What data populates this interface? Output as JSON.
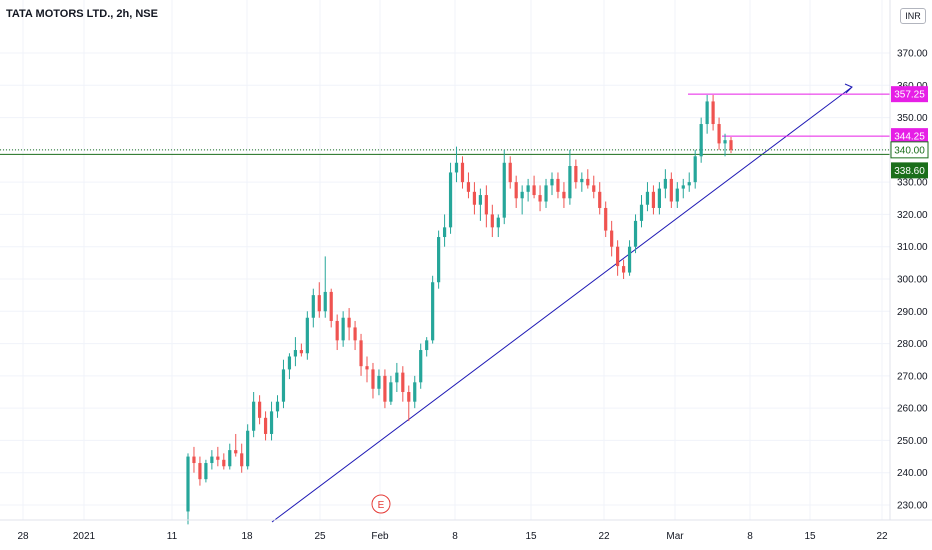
{
  "header": {
    "title": "TATA MOTORS LTD., 2h, NSE",
    "currency": "INR"
  },
  "colors": {
    "up": "#26a69a",
    "down": "#ef5350",
    "support": "#1b6e1b",
    "target": "#e61ee6",
    "trend": "#1f1ab5",
    "earnings": "#e53935"
  },
  "chart_data": {
    "type": "candlestick",
    "y_range": [
      223,
      380
    ],
    "y_ticks": [
      230,
      240,
      250,
      260,
      270,
      280,
      290,
      300,
      310,
      320,
      330,
      340,
      350,
      360,
      370
    ],
    "y_tick_labels": [
      "230.00",
      "240.00",
      "250.00",
      "260.00",
      "270.00",
      "280.00",
      "290.00",
      "300.00",
      "310.00",
      "320.00",
      "330.00",
      "340.00",
      "350.00",
      "360.00",
      "370.00"
    ],
    "x_labels": [
      "28",
      "2021",
      "11",
      "18",
      "25",
      "Feb",
      "8",
      "15",
      "22",
      "Mar",
      "8",
      "15",
      "22"
    ],
    "support_level": 338.6,
    "support_label": "338.60",
    "last_price": 340.0,
    "last_price_label": "340.00",
    "target_levels": [
      {
        "value": 357.25,
        "label": "357.25"
      },
      {
        "value": 344.25,
        "label": "344.25"
      }
    ],
    "earnings_marker": "E",
    "candles": [
      [
        228,
        246,
        224,
        245
      ],
      [
        245,
        248,
        240,
        243
      ],
      [
        243,
        245,
        236,
        238
      ],
      [
        238,
        244,
        237,
        243
      ],
      [
        243,
        247,
        241,
        245
      ],
      [
        245,
        248,
        242,
        244
      ],
      [
        244,
        246,
        241,
        242
      ],
      [
        242,
        249,
        241,
        247
      ],
      [
        247,
        252,
        245,
        246
      ],
      [
        246,
        249,
        240,
        242
      ],
      [
        242,
        255,
        241,
        253
      ],
      [
        253,
        265,
        251,
        262
      ],
      [
        262,
        264,
        255,
        257
      ],
      [
        257,
        259,
        250,
        252
      ],
      [
        252,
        262,
        250,
        259
      ],
      [
        259,
        264,
        257,
        262
      ],
      [
        262,
        275,
        260,
        272
      ],
      [
        272,
        277,
        269,
        276
      ],
      [
        276,
        282,
        273,
        278
      ],
      [
        278,
        280,
        276,
        277
      ],
      [
        277,
        290,
        275,
        288
      ],
      [
        288,
        297,
        285,
        295
      ],
      [
        295,
        299,
        288,
        290
      ],
      [
        290,
        307,
        288,
        296
      ],
      [
        296,
        297,
        285,
        287
      ],
      [
        287,
        289,
        278,
        281
      ],
      [
        281,
        290,
        279,
        288
      ],
      [
        288,
        291,
        281,
        285
      ],
      [
        285,
        287,
        278,
        281
      ],
      [
        281,
        283,
        270,
        273
      ],
      [
        273,
        276,
        268,
        272
      ],
      [
        272,
        274,
        263,
        266
      ],
      [
        266,
        272,
        264,
        270
      ],
      [
        270,
        272,
        260,
        262
      ],
      [
        262,
        270,
        261,
        268
      ],
      [
        268,
        274,
        265,
        271
      ],
      [
        271,
        273,
        262,
        265
      ],
      [
        265,
        267,
        256,
        262
      ],
      [
        262,
        270,
        260,
        268
      ],
      [
        268,
        280,
        266,
        278
      ],
      [
        278,
        282,
        276,
        281
      ],
      [
        281,
        301,
        280,
        299
      ],
      [
        299,
        315,
        297,
        313
      ],
      [
        313,
        320,
        310,
        316
      ],
      [
        316,
        336,
        314,
        333
      ],
      [
        333,
        341,
        330,
        336
      ],
      [
        336,
        338,
        328,
        330
      ],
      [
        330,
        333,
        325,
        327
      ],
      [
        327,
        330,
        320,
        323
      ],
      [
        323,
        328,
        318,
        326
      ],
      [
        326,
        329,
        316,
        320
      ],
      [
        320,
        323,
        313,
        316
      ],
      [
        316,
        320,
        313,
        319
      ],
      [
        319,
        340,
        317,
        336
      ],
      [
        336,
        338,
        328,
        330
      ],
      [
        330,
        332,
        322,
        325
      ],
      [
        325,
        329,
        320,
        327
      ],
      [
        327,
        331,
        324,
        329
      ],
      [
        329,
        332,
        325,
        326
      ],
      [
        326,
        329,
        321,
        324
      ],
      [
        324,
        331,
        322,
        329
      ],
      [
        329,
        333,
        326,
        331
      ],
      [
        331,
        333,
        325,
        327
      ],
      [
        327,
        330,
        322,
        325
      ],
      [
        325,
        340,
        323,
        335
      ],
      [
        335,
        337,
        328,
        330
      ],
      [
        330,
        333,
        327,
        331
      ],
      [
        331,
        334,
        328,
        329
      ],
      [
        329,
        332,
        325,
        327
      ],
      [
        327,
        330,
        320,
        322
      ],
      [
        322,
        324,
        313,
        315
      ],
      [
        315,
        318,
        307,
        310
      ],
      [
        310,
        312,
        301,
        304
      ],
      [
        304,
        306,
        300,
        302
      ],
      [
        302,
        312,
        301,
        310
      ],
      [
        310,
        320,
        308,
        318
      ],
      [
        318,
        326,
        316,
        323
      ],
      [
        323,
        330,
        321,
        327
      ],
      [
        327,
        329,
        320,
        322
      ],
      [
        322,
        330,
        320,
        328
      ],
      [
        328,
        334,
        325,
        331
      ],
      [
        331,
        333,
        322,
        324
      ],
      [
        324,
        330,
        322,
        328
      ],
      [
        328,
        331,
        325,
        329
      ],
      [
        329,
        333,
        327,
        330
      ],
      [
        330,
        340,
        328,
        338
      ],
      [
        338,
        350,
        336,
        348
      ],
      [
        348,
        357,
        345,
        355
      ],
      [
        355,
        357,
        346,
        348
      ],
      [
        348,
        350,
        340,
        342
      ],
      [
        342,
        345,
        338,
        343
      ],
      [
        343,
        344,
        339,
        340
      ]
    ]
  }
}
